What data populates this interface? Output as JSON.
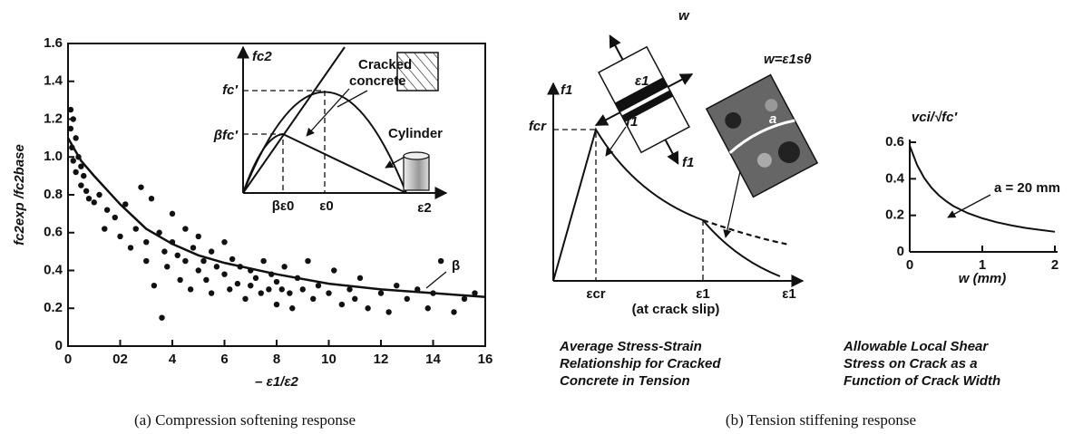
{
  "chart_data": [
    {
      "type": "scatter",
      "x_label": "– ε1/ε2",
      "y_label": "fc2exp /fc2base",
      "xlim": [
        0,
        16
      ],
      "ylim": [
        0,
        1.6
      ],
      "xticks": [
        0,
        {
          "value": 2,
          "label": "02"
        },
        4,
        6,
        8,
        10,
        12,
        14,
        16
      ],
      "yticks": [
        0,
        0.2,
        0.4,
        0.6,
        0.8,
        {
          "value": 1,
          "label": "1.0"
        },
        1.2,
        1.4,
        1.6
      ],
      "color": "#111111",
      "x": [
        0.1,
        0.1,
        0.2,
        0.15,
        0.2,
        0.3,
        0.3,
        0.4,
        0.5,
        0.5,
        0.6,
        0.7,
        0.8,
        1.0,
        1.2,
        1.4,
        1.5,
        1.8,
        2.0,
        2.2,
        2.4,
        2.6,
        2.8,
        3.0,
        3.0,
        3.2,
        3.3,
        3.5,
        3.6,
        3.7,
        3.8,
        4.0,
        4.0,
        4.2,
        4.3,
        4.5,
        4.5,
        4.7,
        4.8,
        5.0,
        5.0,
        5.2,
        5.3,
        5.5,
        5.5,
        5.7,
        6.0,
        6.0,
        6.2,
        6.3,
        6.5,
        6.6,
        6.8,
        7.0,
        7.0,
        7.2,
        7.4,
        7.5,
        7.7,
        7.8,
        8.0,
        8.0,
        8.2,
        8.3,
        8.5,
        8.6,
        8.8,
        9.0,
        9.2,
        9.4,
        9.6,
        10.0,
        10.2,
        10.5,
        10.8,
        11.0,
        11.2,
        11.5,
        12.0,
        12.3,
        12.6,
        13.0,
        13.4,
        13.8,
        14.0,
        14.3,
        14.8,
        15.2,
        15.6
      ],
      "values": [
        1.25,
        1.15,
        1.2,
        1.05,
        0.98,
        1.1,
        0.92,
        1.0,
        0.95,
        0.85,
        0.9,
        0.82,
        0.78,
        0.76,
        0.8,
        0.62,
        0.72,
        0.68,
        0.58,
        0.75,
        0.52,
        0.62,
        0.84,
        0.55,
        0.45,
        0.78,
        0.32,
        0.6,
        0.15,
        0.5,
        0.42,
        0.7,
        0.55,
        0.48,
        0.35,
        0.62,
        0.45,
        0.3,
        0.52,
        0.4,
        0.58,
        0.45,
        0.35,
        0.5,
        0.28,
        0.42,
        0.38,
        0.55,
        0.3,
        0.46,
        0.33,
        0.42,
        0.25,
        0.4,
        0.32,
        0.36,
        0.28,
        0.45,
        0.3,
        0.38,
        0.34,
        0.22,
        0.3,
        0.42,
        0.28,
        0.2,
        0.36,
        0.3,
        0.45,
        0.25,
        0.32,
        0.28,
        0.4,
        0.22,
        0.3,
        0.25,
        0.36,
        0.2,
        0.28,
        0.18,
        0.32,
        0.25,
        0.3,
        0.2,
        0.28,
        0.45,
        0.18,
        0.25,
        0.28
      ],
      "curve": {
        "label": "β",
        "x": [
          0,
          0.5,
          1,
          2,
          3,
          4,
          5,
          6,
          8,
          10,
          12,
          14,
          16
        ],
        "values": [
          1.1,
          0.98,
          0.9,
          0.75,
          0.62,
          0.54,
          0.48,
          0.44,
          0.38,
          0.33,
          0.3,
          0.28,
          0.26
        ]
      }
    },
    {
      "type": "line",
      "x_label": "w (mm)",
      "y_label": "vci/√fc′",
      "xlim": [
        0,
        2
      ],
      "ylim": [
        0,
        0.6
      ],
      "xticks": [
        0,
        1,
        2
      ],
      "yticks": [
        0,
        0.2,
        0.4,
        0.6
      ],
      "color": "#111111",
      "x": [
        0,
        0.1,
        0.2,
        0.3,
        0.4,
        0.5,
        0.6,
        0.8,
        1.0,
        1.2,
        1.4,
        1.6,
        1.8,
        2.0
      ],
      "values": [
        0.581,
        0.477,
        0.404,
        0.351,
        0.31,
        0.278,
        0.251,
        0.212,
        0.184,
        0.162,
        0.145,
        0.131,
        0.12,
        0.11
      ],
      "annotation": "a = 20 mm",
      "caption": [
        "Allowable Local Shear",
        "Stress on Crack as a",
        "Function of Crack Width"
      ]
    }
  ],
  "inset": {
    "y_label": "fc2",
    "fc": "fc′",
    "bfc": "βfc′",
    "be0": "βε0",
    "e0": "ε0",
    "x_label": "ε2",
    "cracked": [
      "Cracked",
      "concrete"
    ],
    "cylinder": "Cylinder"
  },
  "stress_strain": {
    "y_label": "f1",
    "fcr": "fcr",
    "ecr": "εcr",
    "e1": "ε1",
    "slip": "(at crack slip)",
    "x_label": "ε1",
    "element": {
      "w": "w",
      "e1": "ε1",
      "f1_a": "f1",
      "f1_b": "f1"
    },
    "crack": {
      "w_eq": "w=ε1sθ",
      "a": "a"
    },
    "caption": [
      "Average Stress-Strain",
      "Relationship for Cracked",
      "Concrete in Tension"
    ]
  },
  "captions": {
    "a": "(a) Compression softening response",
    "b": "(b) Tension stiffening response"
  }
}
